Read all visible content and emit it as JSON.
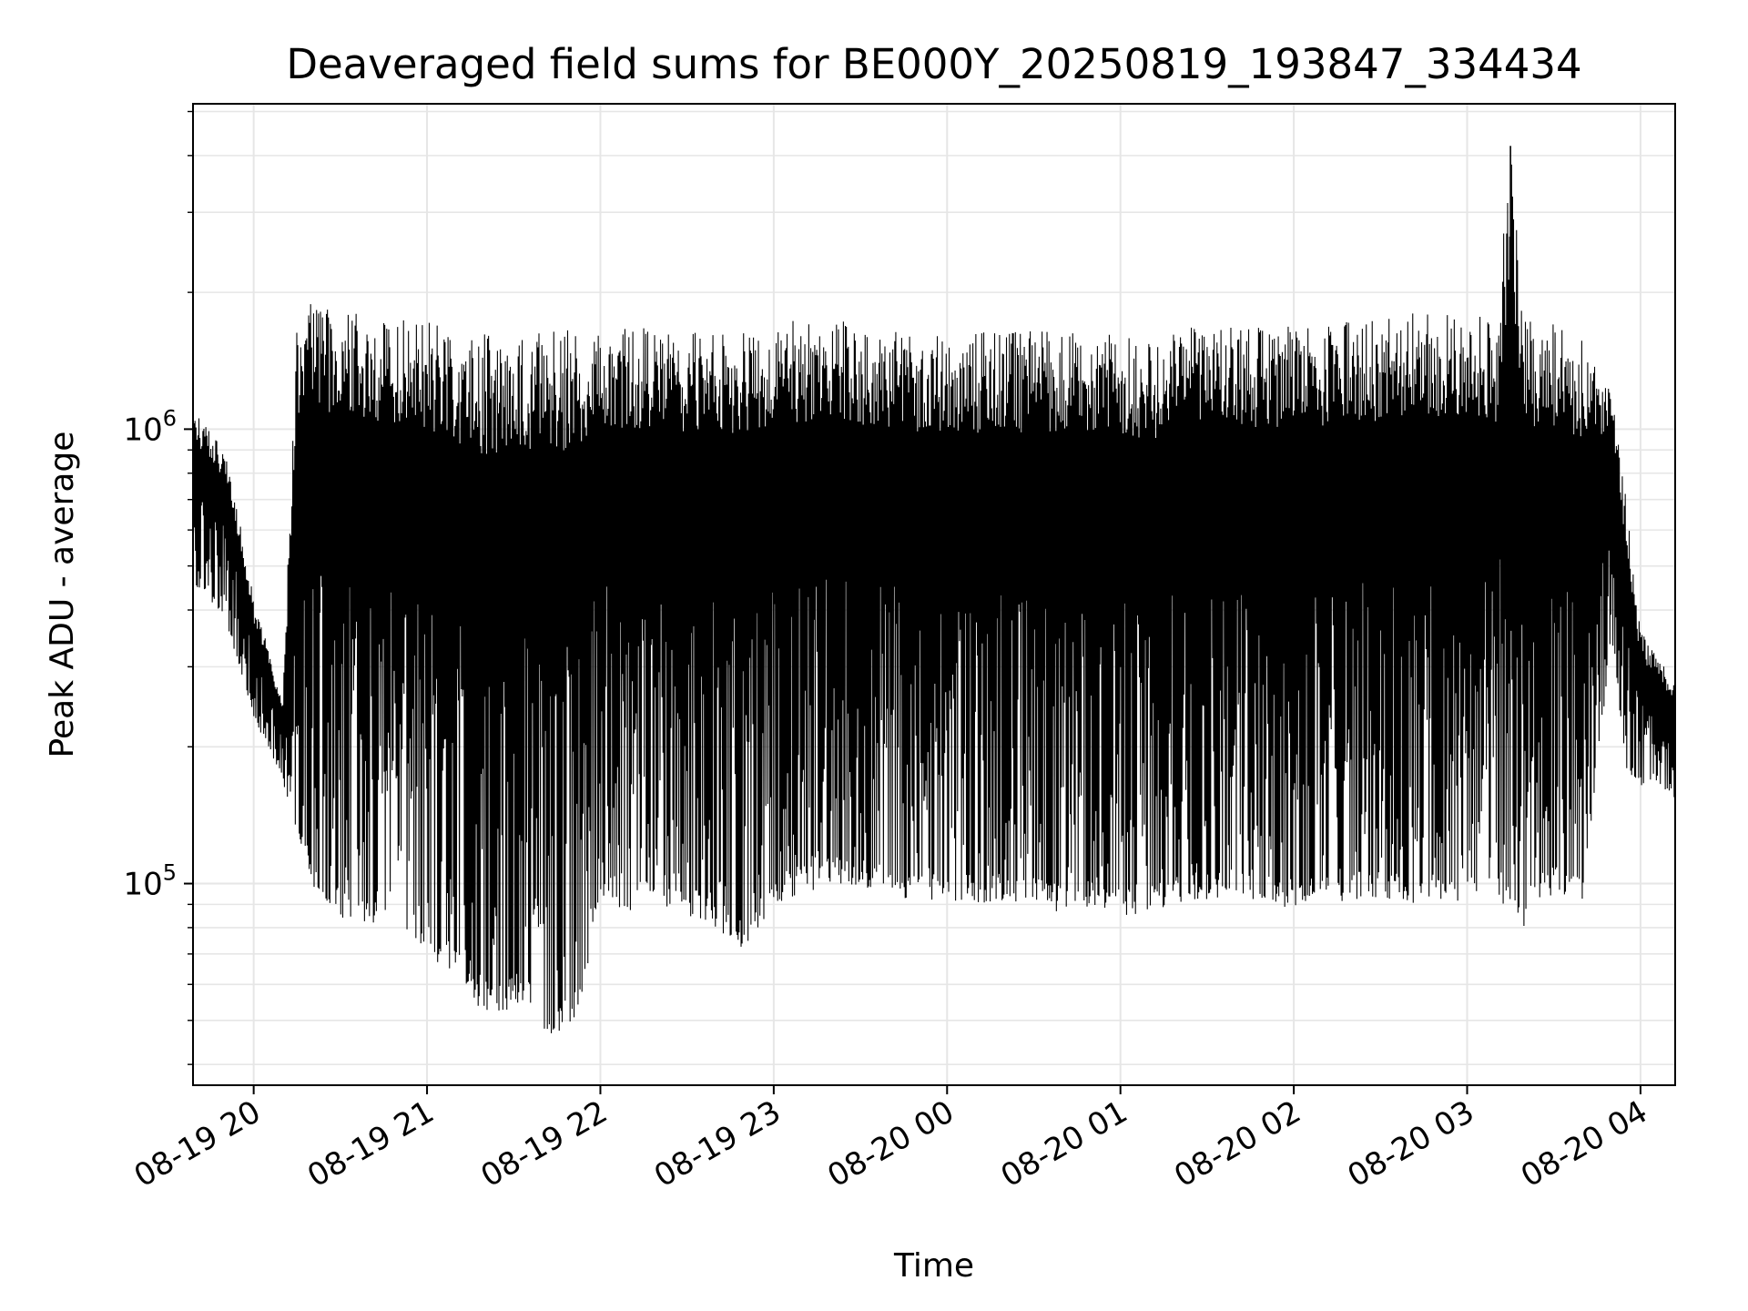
{
  "chart_data": {
    "type": "line",
    "title": "Deaveraged field sums for BE000Y_20250819_193847_334434",
    "xlabel": "Time",
    "ylabel": "Peak ADU - average",
    "yscale": "log",
    "ylim": [
      36000,
      5200000
    ],
    "xlim": [
      "2025-08-19 19:39",
      "2025-08-20 04:12"
    ],
    "grid": true,
    "legend": "none",
    "line_color": "#000000",
    "grid_color": "#e6e6e6",
    "x_ticks": [
      "08-19 20",
      "08-19 21",
      "08-19 22",
      "08-19 23",
      "08-20 00",
      "08-20 01",
      "08-20 02",
      "08-20 03",
      "08-20 04"
    ],
    "y_ticks": [
      {
        "base": "10",
        "exp": "5"
      },
      {
        "base": "10",
        "exp": "6"
      }
    ],
    "series": [
      {
        "x": [
          "2025-08-19 19:39",
          "2025-08-19 19:45",
          "2025-08-19 19:50",
          "2025-08-19 19:55",
          "2025-08-19 20:00",
          "2025-08-19 20:05",
          "2025-08-19 20:10",
          "2025-08-19 20:15",
          "2025-08-19 20:20",
          "2025-08-19 20:25",
          "2025-08-19 20:30",
          "2025-08-19 20:35",
          "2025-08-19 20:40",
          "2025-08-19 20:45",
          "2025-08-19 20:50",
          "2025-08-19 20:55",
          "2025-08-19 21:00",
          "2025-08-19 21:05",
          "2025-08-19 21:10",
          "2025-08-19 21:15",
          "2025-08-19 21:20",
          "2025-08-19 21:25",
          "2025-08-19 21:30",
          "2025-08-19 21:35",
          "2025-08-19 21:40",
          "2025-08-19 21:45",
          "2025-08-19 21:50",
          "2025-08-19 21:55",
          "2025-08-19 22:00",
          "2025-08-19 22:10",
          "2025-08-19 22:20",
          "2025-08-19 22:30",
          "2025-08-19 22:40",
          "2025-08-19 22:50",
          "2025-08-19 23:00",
          "2025-08-19 23:10",
          "2025-08-19 23:20",
          "2025-08-19 23:30",
          "2025-08-19 23:40",
          "2025-08-19 23:50",
          "2025-08-20 00:00",
          "2025-08-20 00:10",
          "2025-08-20 00:20",
          "2025-08-20 00:30",
          "2025-08-20 00:40",
          "2025-08-20 00:50",
          "2025-08-20 01:00",
          "2025-08-20 01:10",
          "2025-08-20 01:20",
          "2025-08-20 01:30",
          "2025-08-20 01:40",
          "2025-08-20 01:50",
          "2025-08-20 02:00",
          "2025-08-20 02:10",
          "2025-08-20 02:20",
          "2025-08-20 02:30",
          "2025-08-20 02:40",
          "2025-08-20 02:50",
          "2025-08-20 03:00",
          "2025-08-20 03:10",
          "2025-08-20 03:15",
          "2025-08-20 03:20",
          "2025-08-20 03:30",
          "2025-08-20 03:40",
          "2025-08-20 03:50",
          "2025-08-20 03:55",
          "2025-08-20 04:00",
          "2025-08-20 04:05",
          "2025-08-20 04:12"
        ],
        "min": [
          450000,
          420000,
          380000,
          300000,
          230000,
          200000,
          170000,
          120000,
          100000,
          90000,
          85000,
          80000,
          80000,
          85000,
          85000,
          75000,
          70000,
          65000,
          60000,
          55000,
          52000,
          50000,
          55000,
          52000,
          48000,
          45000,
          48000,
          60000,
          95000,
          85000,
          90000,
          85000,
          80000,
          70000,
          90000,
          95000,
          100000,
          98000,
          95000,
          90000,
          92000,
          90000,
          92000,
          90000,
          85000,
          88000,
          85000,
          85000,
          90000,
          92000,
          95000,
          90000,
          88000,
          90000,
          92000,
          92000,
          90000,
          90000,
          92000,
          95000,
          85000,
          80000,
          95000,
          90000,
          350000,
          180000,
          160000,
          170000,
          150000
        ],
        "max": [
          1100000,
          1000000,
          900000,
          650000,
          420000,
          330000,
          250000,
          1700000,
          1900000,
          1850000,
          1800000,
          1850000,
          1800000,
          1750000,
          1800000,
          1750000,
          1800000,
          1750000,
          1700000,
          1600000,
          1650000,
          1600000,
          1650000,
          1650000,
          1650000,
          1650000,
          1650000,
          1650000,
          1700000,
          1700000,
          1650000,
          1650000,
          1650000,
          1650000,
          1700000,
          1750000,
          1750000,
          1700000,
          1650000,
          1650000,
          1650000,
          1650000,
          1650000,
          1650000,
          1650000,
          1650000,
          1600000,
          1600000,
          1650000,
          1700000,
          1700000,
          1700000,
          1700000,
          1700000,
          1750000,
          1750000,
          1800000,
          1800000,
          1800000,
          1750000,
          4200000,
          1750000,
          1700000,
          1600000,
          1200000,
          700000,
          360000,
          320000,
          280000
        ]
      }
    ]
  }
}
